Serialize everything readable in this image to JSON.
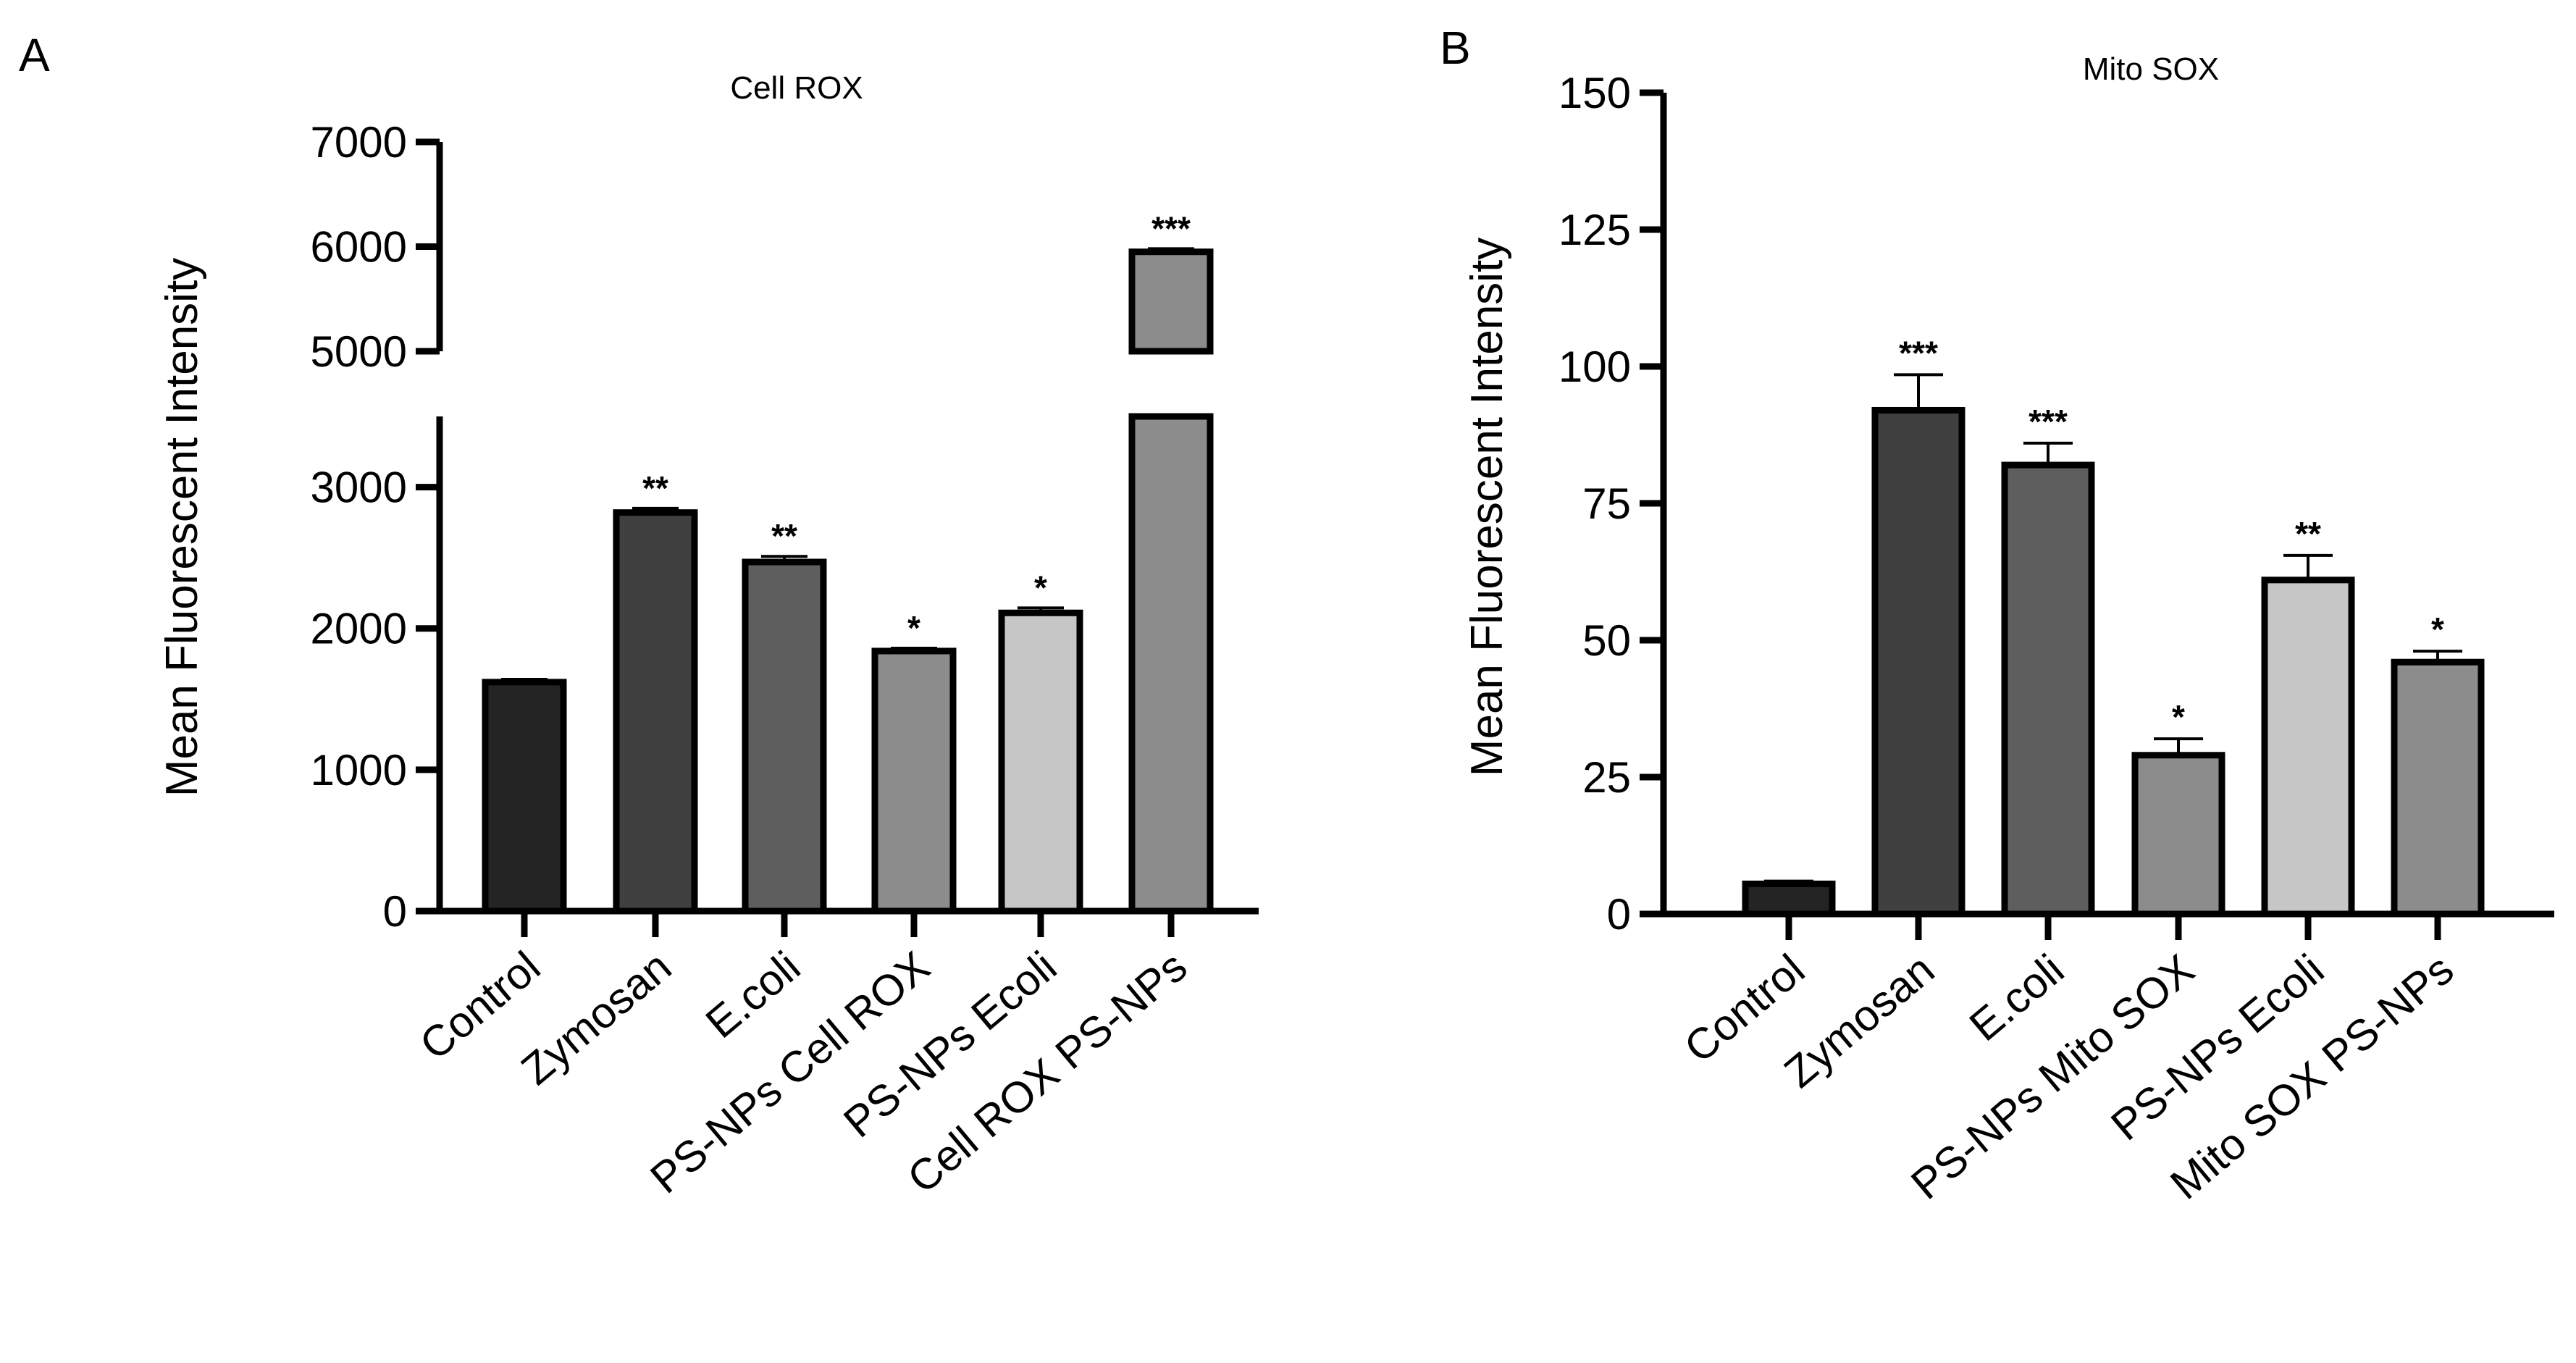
{
  "chart_data": [
    {
      "panel": "A",
      "type": "bar",
      "title": "Cell ROX",
      "xlabel": "",
      "ylabel": "Mean Fluorescent Intensity",
      "y_axis_break": [
        3500,
        5000
      ],
      "ylim": [
        0,
        7000
      ],
      "yticks": [
        "0",
        "1000",
        "2000",
        "3000",
        "5000",
        "6000",
        "7000"
      ],
      "categories": [
        "Control",
        "Zymosan",
        "E.coli",
        "PS-NPs Cell ROX",
        "PS-NPs Ecoli",
        "Cell ROX PS-NPs"
      ],
      "values": [
        1620,
        2820,
        2470,
        1840,
        2110,
        5950
      ],
      "errors": [
        20,
        30,
        40,
        20,
        35,
        30
      ],
      "significance": [
        "",
        "**",
        "**",
        "*",
        "*",
        "***"
      ],
      "colors": [
        "#242424",
        "#404040",
        "#5e5e5e",
        "#8c8c8c",
        "#c6c6c6",
        "#8c8c8c"
      ]
    },
    {
      "panel": "B",
      "type": "bar",
      "title": "Mito SOX",
      "xlabel": "",
      "ylabel": "Mean Fluorescent Intensity",
      "ylim": [
        0,
        150
      ],
      "yticks": [
        "0",
        "25",
        "50",
        "75",
        "100",
        "125",
        "150"
      ],
      "categories": [
        "Control",
        "Zymosan",
        "E.coli",
        "PS-NPs Mito SOX",
        "PS-NPs Ecoli",
        "Mito SOX PS-NPs"
      ],
      "values": [
        5.5,
        92,
        82,
        29,
        61,
        46
      ],
      "errors": [
        0.5,
        6.5,
        4,
        3,
        4.5,
        2
      ],
      "significance": [
        "",
        "***",
        "***",
        "*",
        "**",
        "*"
      ],
      "colors": [
        "#242424",
        "#404040",
        "#5e5e5e",
        "#8c8c8c",
        "#c6c6c6",
        "#8c8c8c"
      ]
    }
  ]
}
